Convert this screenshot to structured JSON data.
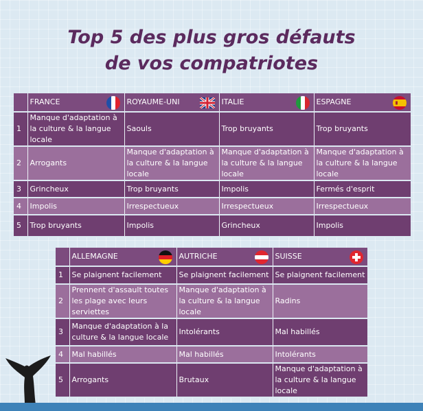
{
  "title": {
    "line1": "Top 5 des plus gros défauts",
    "line2": "de vos compatriotes"
  },
  "table1": {
    "countries": [
      {
        "name": "FRANCE",
        "flag": "france-flag-icon"
      },
      {
        "name": "ROYAUME-UNI",
        "flag": "uk-flag-icon"
      },
      {
        "name": "ITALIE",
        "flag": "italy-flag-icon"
      },
      {
        "name": "ESPAGNE",
        "flag": "spain-flag-icon"
      }
    ],
    "rows": [
      {
        "rank": "1",
        "cells": [
          "Manque d'adaptation à la culture & la langue locale",
          "Saouls",
          "Trop bruyants",
          "Trop bruyants"
        ]
      },
      {
        "rank": "2",
        "cells": [
          "Arrogants",
          "Manque d'adaptation à la culture & la langue locale",
          "Manque d'adaptation à la culture & la langue locale",
          "Manque d'adaptation à la culture & la langue locale"
        ]
      },
      {
        "rank": "3",
        "cells": [
          "Grincheux",
          "Trop bruyants",
          "Impolis",
          "Fermés d'esprit"
        ]
      },
      {
        "rank": "4",
        "cells": [
          "Impolis",
          "Irrespectueux",
          "Irrespectueux",
          "Irrespectueux"
        ]
      },
      {
        "rank": "5",
        "cells": [
          "Trop bruyants",
          "Impolis",
          "Grincheux",
          "Impolis"
        ]
      }
    ]
  },
  "table2": {
    "countries": [
      {
        "name": "ALLEMAGNE",
        "flag": "germany-flag-icon"
      },
      {
        "name": "AUTRICHE",
        "flag": "austria-flag-icon"
      },
      {
        "name": "SUISSE",
        "flag": "switzerland-flag-icon"
      }
    ],
    "rows": [
      {
        "rank": "1",
        "cells": [
          "Se plaignent facilement",
          "Se plaignent facilement",
          "Se plaignent facilement"
        ]
      },
      {
        "rank": "2",
        "cells": [
          "Prennent d'assault toutes les plage avec leurs serviettes",
          "Manque d'adaptation à la culture & la langue locale",
          "Radins"
        ]
      },
      {
        "rank": "3",
        "cells": [
          "Manque d'adaptation à la culture & la langue locale",
          "Intolérants",
          "Mal habillés"
        ]
      },
      {
        "rank": "4",
        "cells": [
          "Mal habillés",
          "Mal habillés",
          "Intolérants"
        ]
      },
      {
        "rank": "5",
        "cells": [
          "Arrogants",
          "Brutaux",
          "Manque d'adaptation à la culture & la langue locale"
        ]
      }
    ]
  },
  "colors": {
    "title": "#5b2a5e",
    "row_dark": "#6f3e70",
    "row_light": "#9b6f9c",
    "header": "#7c4b7e",
    "background": "#dce9f2",
    "water": "#3e82b8",
    "whale": "#1c1c1c"
  },
  "decor": {
    "whale": "whale-tail-icon"
  }
}
